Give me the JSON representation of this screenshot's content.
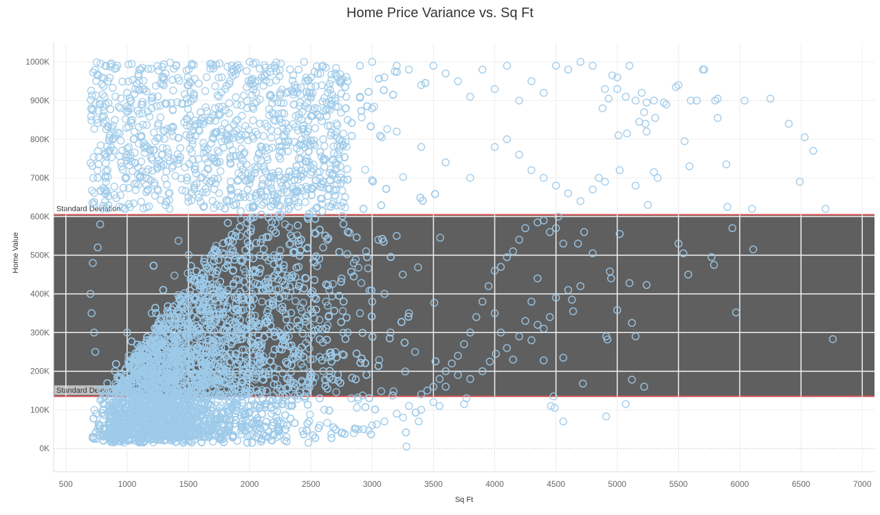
{
  "chart_data": {
    "type": "scatter",
    "title": "Home Price Variance vs. Sq Ft",
    "xlabel": "Sq Ft",
    "ylabel": "Home Value",
    "xlim": [
      400,
      7100
    ],
    "ylim": [
      -60000,
      1050000
    ],
    "x_ticks": [
      500,
      1000,
      1500,
      2000,
      2500,
      3000,
      3500,
      4000,
      4500,
      5000,
      5500,
      6000,
      6500,
      7000
    ],
    "y_ticks": [
      {
        "value": 0,
        "label": "0K"
      },
      {
        "value": 100000,
        "label": "100K"
      },
      {
        "value": 200000,
        "label": "200K"
      },
      {
        "value": 300000,
        "label": "300K"
      },
      {
        "value": 400000,
        "label": "400K"
      },
      {
        "value": 500000,
        "label": "500K"
      },
      {
        "value": 600000,
        "label": "600K"
      },
      {
        "value": 700000,
        "label": "700K"
      },
      {
        "value": 800000,
        "label": "800K"
      },
      {
        "value": 900000,
        "label": "900K"
      },
      {
        "value": 1000000,
        "label": "1000K"
      }
    ],
    "reference_band": {
      "lower": 135000,
      "upper": 605000,
      "lower_label": "Standard Deviation",
      "upper_label": "Standard Deviation",
      "fill_color": "#5f5f5f",
      "line_color": "#e05a5a"
    },
    "marker": {
      "shape": "open-circle",
      "color": "#9ecae9"
    },
    "grid": true,
    "points": [
      [
        1000,
        300000
      ],
      [
        1200,
        350000
      ],
      [
        1400,
        280000
      ],
      [
        1600,
        420000
      ],
      [
        1800,
        390000
      ],
      [
        2000,
        450000
      ],
      [
        2200,
        500000
      ],
      [
        2400,
        470000
      ],
      [
        2600,
        520000
      ],
      [
        2800,
        560000
      ],
      [
        800,
        150000
      ],
      [
        900,
        200000
      ],
      [
        1100,
        250000
      ],
      [
        1300,
        180000
      ],
      [
        1500,
        320000
      ],
      [
        1700,
        260000
      ],
      [
        1900,
        300000
      ],
      [
        2100,
        380000
      ],
      [
        2300,
        410000
      ],
      [
        2500,
        360000
      ],
      [
        750,
        90000
      ],
      [
        850,
        60000
      ],
      [
        950,
        120000
      ],
      [
        1050,
        80000
      ],
      [
        1150,
        140000
      ],
      [
        1250,
        110000
      ],
      [
        1350,
        160000
      ],
      [
        1450,
        130000
      ],
      [
        1550,
        190000
      ],
      [
        1650,
        170000
      ],
      [
        760,
        700000
      ],
      [
        820,
        760000
      ],
      [
        900,
        850000
      ],
      [
        1000,
        920000
      ],
      [
        1100,
        980000
      ],
      [
        1200,
        880000
      ],
      [
        1300,
        960000
      ],
      [
        1400,
        990000
      ],
      [
        1500,
        940000
      ],
      [
        1600,
        870000
      ],
      [
        1700,
        990000
      ],
      [
        1800,
        930000
      ],
      [
        1900,
        980000
      ],
      [
        2000,
        1000000
      ],
      [
        2100,
        960000
      ],
      [
        2200,
        990000
      ],
      [
        2300,
        920000
      ],
      [
        2400,
        980000
      ],
      [
        2500,
        960000
      ],
      [
        2600,
        990000
      ],
      [
        2700,
        970000
      ],
      [
        2800,
        950000
      ],
      [
        2900,
        990000
      ],
      [
        3000,
        1000000
      ],
      [
        3100,
        960000
      ],
      [
        3200,
        990000
      ],
      [
        3300,
        980000
      ],
      [
        3400,
        940000
      ],
      [
        3500,
        990000
      ],
      [
        3600,
        970000
      ],
      [
        3700,
        950000
      ],
      [
        3800,
        910000
      ],
      [
        3900,
        980000
      ],
      [
        4000,
        930000
      ],
      [
        4100,
        990000
      ],
      [
        4200,
        900000
      ],
      [
        4300,
        950000
      ],
      [
        4400,
        920000
      ],
      [
        4500,
        990000
      ],
      [
        4600,
        980000
      ],
      [
        4700,
        1000000
      ],
      [
        4800,
        990000
      ],
      [
        4900,
        930000
      ],
      [
        5000,
        960000
      ],
      [
        5100,
        990000
      ],
      [
        5200,
        920000
      ],
      [
        5300,
        900000
      ],
      [
        5400,
        890000
      ],
      [
        5500,
        940000
      ],
      [
        5600,
        900000
      ],
      [
        5700,
        980000
      ],
      [
        5800,
        900000
      ],
      [
        6250,
        905000
      ],
      [
        5820,
        855000
      ],
      [
        6400,
        840000
      ],
      [
        6530,
        805000
      ],
      [
        6600,
        770000
      ],
      [
        6490,
        690000
      ],
      [
        5550,
        795000
      ],
      [
        5590,
        730000
      ],
      [
        5890,
        735000
      ],
      [
        5900,
        625000
      ],
      [
        6100,
        620000
      ],
      [
        6700,
        620000
      ],
      [
        5250,
        630000
      ],
      [
        4850,
        700000
      ],
      [
        5020,
        720000
      ],
      [
        5150,
        680000
      ],
      [
        5330,
        700000
      ],
      [
        5300,
        715000
      ],
      [
        5940,
        570000
      ],
      [
        6110,
        515000
      ],
      [
        5770,
        495000
      ],
      [
        5790,
        475000
      ],
      [
        5500,
        530000
      ],
      [
        5540,
        505000
      ],
      [
        5580,
        450000
      ],
      [
        5970,
        352000
      ],
      [
        6760,
        283000
      ],
      [
        5120,
        325000
      ],
      [
        5000,
        358000
      ],
      [
        5020,
        555000
      ],
      [
        4950,
        440000
      ],
      [
        4940,
        458000
      ],
      [
        5100,
        428000
      ],
      [
        5240,
        423000
      ],
      [
        4910,
        290000
      ],
      [
        4920,
        282000
      ],
      [
        5150,
        290000
      ],
      [
        5120,
        178000
      ],
      [
        5220,
        160000
      ],
      [
        5070,
        115000
      ],
      [
        4910,
        83000
      ],
      [
        4560,
        70000
      ],
      [
        4480,
        135000
      ],
      [
        4460,
        110000
      ],
      [
        4490,
        105000
      ],
      [
        4720,
        168000
      ],
      [
        4560,
        235000
      ],
      [
        4400,
        228000
      ],
      [
        4300,
        380000
      ],
      [
        4350,
        440000
      ],
      [
        4500,
        390000
      ],
      [
        4600,
        410000
      ],
      [
        4700,
        420000
      ],
      [
        4640,
        355000
      ],
      [
        4630,
        385000
      ],
      [
        4800,
        505000
      ],
      [
        4730,
        560000
      ],
      [
        4680,
        530000
      ],
      [
        4560,
        530000
      ],
      [
        4520,
        600000
      ],
      [
        4500,
        570000
      ],
      [
        4450,
        560000
      ],
      [
        4400,
        590000
      ],
      [
        4350,
        585000
      ],
      [
        4200,
        540000
      ],
      [
        4250,
        570000
      ],
      [
        4150,
        510000
      ],
      [
        4100,
        495000
      ],
      [
        4050,
        470000
      ],
      [
        4000,
        460000
      ],
      [
        3950,
        420000
      ],
      [
        3900,
        380000
      ],
      [
        3850,
        340000
      ],
      [
        3800,
        300000
      ],
      [
        3750,
        270000
      ],
      [
        3700,
        240000
      ],
      [
        3650,
        220000
      ],
      [
        3600,
        200000
      ],
      [
        3550,
        180000
      ],
      [
        3500,
        160000
      ],
      [
        3450,
        150000
      ],
      [
        3400,
        140000
      ],
      [
        3350,
        250000
      ],
      [
        3300,
        350000
      ],
      [
        3250,
        450000
      ],
      [
        3200,
        550000
      ],
      [
        3150,
        300000
      ],
      [
        3100,
        400000
      ],
      [
        4000,
        350000
      ],
      [
        4050,
        300000
      ],
      [
        4100,
        260000
      ],
      [
        4150,
        230000
      ],
      [
        4200,
        290000
      ],
      [
        4250,
        330000
      ],
      [
        4300,
        280000
      ],
      [
        4350,
        320000
      ],
      [
        4400,
        310000
      ],
      [
        4450,
        340000
      ],
      [
        3800,
        180000
      ],
      [
        3900,
        200000
      ],
      [
        3960,
        225000
      ],
      [
        4010,
        245000
      ],
      [
        3700,
        190000
      ],
      [
        3600,
        160000
      ],
      [
        3750,
        115000
      ],
      [
        3770,
        130000
      ],
      [
        3380,
        70000
      ],
      [
        3280,
        5000
      ],
      [
        2750,
        40000
      ],
      [
        2850,
        40000
      ],
      [
        2930,
        50000
      ],
      [
        3000,
        60000
      ],
      [
        3100,
        70000
      ],
      [
        3200,
        90000
      ],
      [
        3300,
        110000
      ],
      [
        3400,
        100000
      ],
      [
        3500,
        120000
      ],
      [
        3550,
        110000
      ],
      [
        2480,
        15000
      ],
      [
        2300,
        30000
      ],
      [
        2100,
        25000
      ],
      [
        1900,
        20000
      ],
      [
        1700,
        18000
      ],
      [
        1500,
        20000
      ],
      [
        1300,
        22000
      ],
      [
        1100,
        18000
      ],
      [
        900,
        20000
      ],
      [
        750,
        25000
      ],
      [
        2600,
        200000
      ],
      [
        2700,
        250000
      ],
      [
        2800,
        300000
      ],
      [
        2900,
        350000
      ],
      [
        3000,
        380000
      ],
      [
        2650,
        410000
      ],
      [
        2750,
        440000
      ],
      [
        2850,
        480000
      ],
      [
        2950,
        510000
      ],
      [
        3050,
        540000
      ],
      [
        700,
        400000
      ],
      [
        710,
        350000
      ],
      [
        720,
        480000
      ],
      [
        730,
        300000
      ],
      [
        740,
        250000
      ],
      [
        760,
        520000
      ],
      [
        780,
        580000
      ],
      [
        800,
        620000
      ],
      [
        820,
        660000
      ],
      [
        840,
        720000
      ],
      [
        2000,
        650000
      ],
      [
        2200,
        700000
      ],
      [
        2400,
        750000
      ],
      [
        2600,
        800000
      ],
      [
        2800,
        850000
      ],
      [
        3000,
        880000
      ],
      [
        3200,
        820000
      ],
      [
        3400,
        780000
      ],
      [
        3600,
        740000
      ],
      [
        3800,
        700000
      ],
      [
        1500,
        650000
      ],
      [
        1600,
        700000
      ],
      [
        1700,
        750000
      ],
      [
        1800,
        800000
      ],
      [
        1900,
        850000
      ],
      [
        2100,
        780000
      ],
      [
        2300,
        820000
      ],
      [
        2500,
        860000
      ],
      [
        2700,
        900000
      ],
      [
        2900,
        910000
      ],
      [
        4000,
        780000
      ],
      [
        4100,
        800000
      ],
      [
        4200,
        760000
      ],
      [
        4300,
        720000
      ],
      [
        4400,
        700000
      ],
      [
        4500,
        680000
      ],
      [
        4600,
        660000
      ],
      [
        4700,
        640000
      ],
      [
        4800,
        670000
      ],
      [
        4900,
        690000
      ],
      [
        5710,
        980000
      ],
      [
        5480,
        935000
      ],
      [
        5380,
        895000
      ],
      [
        5240,
        895000
      ],
      [
        5150,
        900000
      ],
      [
        5070,
        910000
      ],
      [
        5000,
        930000
      ],
      [
        4960,
        965000
      ],
      [
        4930,
        905000
      ],
      [
        4880,
        880000
      ],
      [
        6040,
        900000
      ],
      [
        5650,
        900000
      ],
      [
        5820,
        905000
      ],
      [
        5220,
        870000
      ],
      [
        5180,
        845000
      ],
      [
        5310,
        855000
      ],
      [
        5230,
        840000
      ],
      [
        5240,
        820000
      ],
      [
        5080,
        815000
      ],
      [
        5010,
        810000
      ]
    ]
  }
}
